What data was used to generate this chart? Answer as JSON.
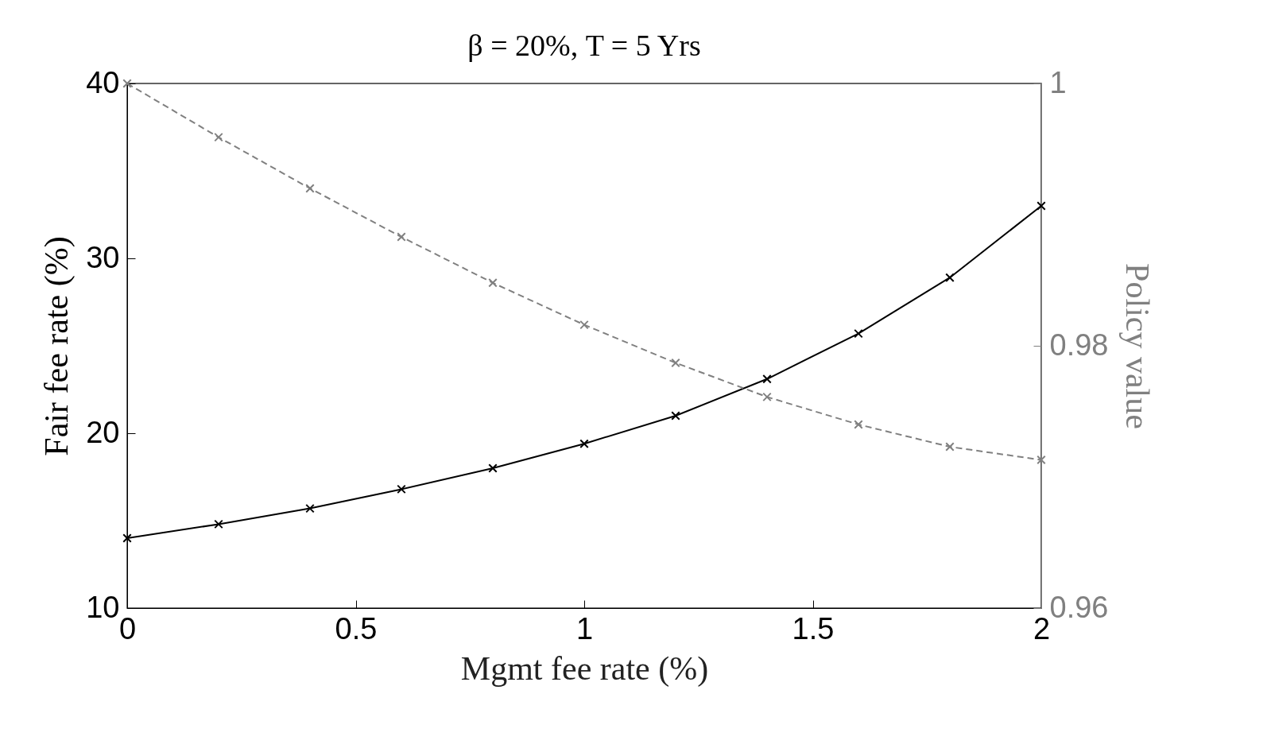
{
  "chart_data": {
    "type": "line",
    "title": "β = 20%, T = 5 Yrs",
    "xlabel": "Mgmt fee rate (%)",
    "ylabel": "Fair fee rate (%)",
    "y2label": "Policy value",
    "x": [
      0,
      0.2,
      0.4,
      0.6,
      0.8,
      1.0,
      1.2,
      1.4,
      1.6,
      1.8,
      2.0
    ],
    "series": [
      {
        "color": "#000000",
        "line_style": "solid",
        "values": [
          14.0,
          14.8,
          15.7,
          16.8,
          18.0,
          19.4,
          21.0,
          23.1,
          25.7,
          28.9,
          33.0
        ]
      },
      {
        "color": "#808080",
        "line_style": "dashed",
        "axis": "y2",
        "values": [
          1.0,
          0.9959,
          0.992,
          0.9883,
          0.9848,
          0.9816,
          0.9787,
          0.9761,
          0.974,
          0.9723,
          0.9713
        ]
      }
    ],
    "marker": "cross",
    "xlim": [
      0,
      2
    ],
    "xticks": [
      0,
      0.5,
      1,
      1.5,
      2
    ],
    "ylim": [
      10,
      40
    ],
    "yticks": [
      10,
      20,
      30,
      40
    ],
    "y2lim": [
      0.96,
      1
    ],
    "y2ticks": [
      0.96,
      0.98,
      1
    ]
  }
}
